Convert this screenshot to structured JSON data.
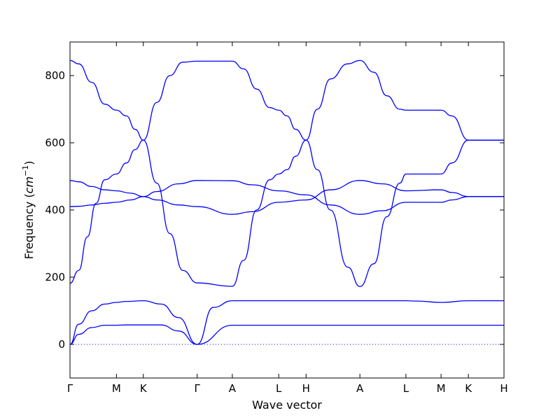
{
  "chart_data": {
    "type": "line",
    "xlabel": "Wave vector",
    "ylabel": "Frequency",
    "ylabel_unit": "cm",
    "ylabel_unit_exp": "−1",
    "ylim": [
      -100,
      900
    ],
    "yticks": [
      0,
      200,
      400,
      600,
      800
    ],
    "xticks": [
      {
        "label": "Γ",
        "x": 0.0
      },
      {
        "label": "M",
        "x": 0.107
      },
      {
        "label": "K",
        "x": 0.169
      },
      {
        "label": "Γ",
        "x": 0.293
      },
      {
        "label": "A",
        "x": 0.374
      },
      {
        "label": "L",
        "x": 0.481
      },
      {
        "label": "H",
        "x": 0.544
      },
      {
        "label": "A",
        "x": 0.668
      },
      {
        "label": "L",
        "x": 0.774
      },
      {
        "label": "M",
        "x": 0.855
      },
      {
        "label": "K",
        "x": 0.918
      },
      {
        "label": "H",
        "x": 1.0
      }
    ],
    "zero_line": true,
    "color": "#0000ff",
    "series": [
      {
        "x": [
          0,
          0.02,
          0.05,
          0.08,
          0.107,
          0.13,
          0.169,
          0.21,
          0.25,
          0.293,
          0.374,
          0.4,
          0.43,
          0.46,
          0.481,
          0.544,
          0.58,
          0.62,
          0.668,
          0.7,
          0.74,
          0.774,
          0.855,
          0.918,
          1.0
        ],
        "values": [
          0,
          30,
          50,
          57,
          57,
          58,
          58,
          58,
          40,
          0,
          57,
          57,
          57,
          57,
          57,
          57,
          57,
          57,
          57,
          57,
          57,
          57,
          57,
          57,
          57
        ]
      },
      {
        "x": [
          0,
          0.02,
          0.05,
          0.08,
          0.107,
          0.13,
          0.169,
          0.21,
          0.25,
          0.293,
          0.33,
          0.374,
          0.481,
          0.544,
          0.668,
          0.774,
          0.8,
          0.855,
          0.918,
          1.0
        ],
        "values": [
          0,
          60,
          100,
          120,
          125,
          128,
          130,
          120,
          80,
          0,
          110,
          130,
          130,
          130,
          130,
          130,
          129,
          125,
          130,
          130
        ]
      },
      {
        "x": [
          0,
          0.02,
          0.04,
          0.06,
          0.08,
          0.107,
          0.13,
          0.15,
          0.169,
          0.2,
          0.23,
          0.26,
          0.293,
          0.374,
          0.4,
          0.43,
          0.46,
          0.481,
          0.5,
          0.52,
          0.544,
          0.57,
          0.6,
          0.64,
          0.668,
          0.7,
          0.73,
          0.76,
          0.774,
          0.855,
          0.88,
          0.918,
          1.0
        ],
        "values": [
          182,
          220,
          320,
          420,
          490,
          507,
          540,
          580,
          608,
          720,
          800,
          840,
          843,
          843,
          820,
          760,
          705,
          697,
          680,
          640,
          608,
          520,
          400,
          230,
          172,
          240,
          380,
          480,
          507,
          507,
          540,
          608,
          608
        ]
      },
      {
        "x": [
          0,
          0.02,
          0.05,
          0.08,
          0.107,
          0.13,
          0.15,
          0.169,
          0.2,
          0.23,
          0.26,
          0.293,
          0.374,
          0.4,
          0.43,
          0.46,
          0.481,
          0.5,
          0.52,
          0.544,
          0.57,
          0.6,
          0.64,
          0.668,
          0.7,
          0.73,
          0.76,
          0.774,
          0.855,
          0.88,
          0.918,
          1.0
        ],
        "values": [
          845,
          835,
          780,
          715,
          697,
          680,
          640,
          608,
          480,
          330,
          220,
          183,
          173,
          250,
          400,
          490,
          507,
          520,
          560,
          608,
          700,
          790,
          835,
          845,
          810,
          740,
          700,
          697,
          697,
          680,
          608,
          608
        ]
      },
      {
        "x": [
          0,
          0.02,
          0.05,
          0.08,
          0.107,
          0.14,
          0.169,
          0.2,
          0.25,
          0.293,
          0.374,
          0.42,
          0.481,
          0.544,
          0.6,
          0.668,
          0.72,
          0.774,
          0.855,
          0.88,
          0.918,
          1.0
        ],
        "values": [
          488,
          484,
          470,
          460,
          457,
          450,
          440,
          430,
          415,
          410,
          387,
          395,
          423,
          430,
          460,
          488,
          478,
          457,
          460,
          452,
          440,
          440
        ]
      },
      {
        "x": [
          0,
          0.02,
          0.05,
          0.08,
          0.107,
          0.14,
          0.169,
          0.2,
          0.25,
          0.293,
          0.374,
          0.42,
          0.481,
          0.544,
          0.6,
          0.668,
          0.72,
          0.774,
          0.855,
          0.88,
          0.918,
          1.0
        ],
        "values": [
          410,
          411,
          415,
          420,
          423,
          430,
          440,
          455,
          478,
          488,
          487,
          475,
          457,
          445,
          415,
          387,
          398,
          423,
          423,
          430,
          440,
          440
        ]
      }
    ]
  }
}
